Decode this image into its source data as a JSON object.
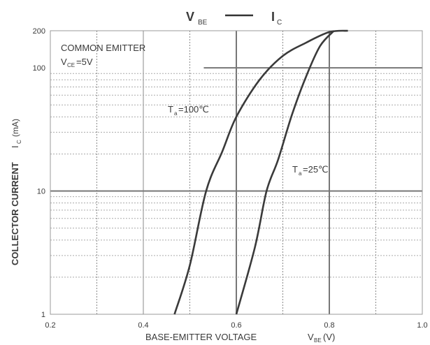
{
  "chart_data": {
    "type": "line",
    "title_left": "V",
    "title_left_sub": "BE",
    "title_right": "I",
    "title_right_sub": "C",
    "xlabel_main": "BASE-EMITTER VOLTAGE",
    "xlabel_sym": "V",
    "xlabel_sub": "BE",
    "xlabel_unit": "(V)",
    "ylabel_main": "COLLECTOR CURRENT",
    "ylabel_sym": "I",
    "ylabel_sub": "C",
    "ylabel_unit": "(mA)",
    "x_scale": "linear",
    "y_scale": "log",
    "xlim": [
      0.2,
      1.0
    ],
    "ylim": [
      1,
      200
    ],
    "x_ticks": [
      {
        "value": 0.2,
        "label": "0.2"
      },
      {
        "value": 0.4,
        "label": "0.4"
      },
      {
        "value": 0.6,
        "label": "0.6"
      },
      {
        "value": 0.8,
        "label": "0.8"
      },
      {
        "value": 1.0,
        "label": "1.0"
      }
    ],
    "y_ticks": [
      {
        "value": 1,
        "label": "1"
      },
      {
        "value": 10,
        "label": "10"
      },
      {
        "value": 100,
        "label": "100"
      },
      {
        "value": 200,
        "label": "200"
      }
    ],
    "grid": true,
    "annotations": {
      "condition_line1": "COMMON EMITTER",
      "condition_line2_sym": "V",
      "condition_line2_sub": "CE",
      "condition_line2_val": "=5V"
    },
    "series": [
      {
        "name": "Ta=100℃",
        "label_sym": "T",
        "label_sub": "a",
        "label_val": "=100℃",
        "x": [
          0.467,
          0.5,
          0.535,
          0.57,
          0.6,
          0.65,
          0.7,
          0.75,
          0.8,
          0.84
        ],
        "y": [
          1,
          2.5,
          10,
          21,
          40,
          80,
          125,
          160,
          195,
          200
        ]
      },
      {
        "name": "Ta=25℃",
        "label_sym": "T",
        "label_sub": "a",
        "label_val": "=25℃",
        "x": [
          0.6,
          0.64,
          0.665,
          0.69,
          0.72,
          0.75,
          0.78,
          0.81
        ],
        "y": [
          1,
          3.5,
          10,
          18,
          42,
          85,
          150,
          200
        ]
      }
    ]
  }
}
